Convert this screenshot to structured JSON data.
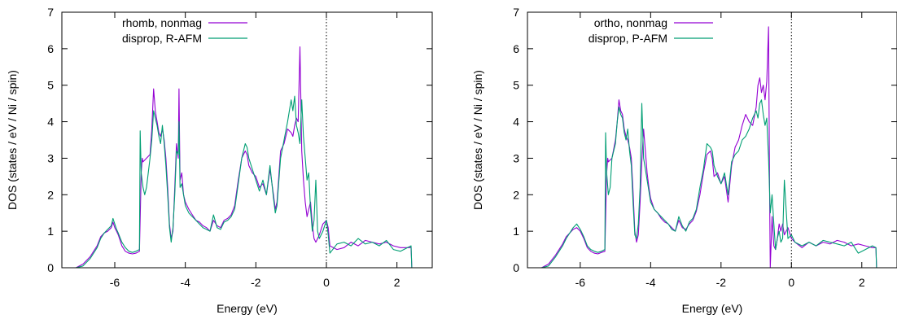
{
  "chart_data": [
    {
      "type": "line",
      "xlabel": "Energy (eV)",
      "ylabel": "DOS (states / eV / Ni / spin)",
      "xlim": [
        -7.5,
        3
      ],
      "ylim": [
        0,
        7
      ],
      "xticks": [
        -6,
        -4,
        -2,
        0,
        2
      ],
      "yticks": [
        0,
        1,
        2,
        3,
        4,
        5,
        6,
        7
      ],
      "xtick_labels": [
        "-6",
        "-4",
        "-2",
        "0",
        "2"
      ],
      "ytick_labels": [
        "0",
        "1",
        "2",
        "3",
        "4",
        "5",
        "6",
        "7"
      ],
      "grid": false,
      "legend_position": "top-left",
      "fermi_level_marker": 0,
      "series": [
        {
          "name": "rhomb, nonmag",
          "color": "#9400d3",
          "x": [
            -7.1,
            -6.9,
            -6.7,
            -6.5,
            -6.4,
            -6.3,
            -6.2,
            -6.1,
            -6.05,
            -6.0,
            -5.95,
            -5.9,
            -5.8,
            -5.7,
            -5.6,
            -5.5,
            -5.4,
            -5.3,
            -5.25,
            -5.22,
            -5.2,
            -5.1,
            -5.0,
            -4.95,
            -4.9,
            -4.85,
            -4.8,
            -4.75,
            -4.7,
            -4.65,
            -4.6,
            -4.55,
            -4.5,
            -4.45,
            -4.4,
            -4.35,
            -4.3,
            -4.25,
            -4.2,
            -4.18,
            -4.15,
            -4.1,
            -4.05,
            -4.0,
            -3.9,
            -3.8,
            -3.7,
            -3.6,
            -3.5,
            -3.4,
            -3.3,
            -3.2,
            -3.1,
            -3.0,
            -2.9,
            -2.8,
            -2.7,
            -2.6,
            -2.5,
            -2.4,
            -2.3,
            -2.25,
            -2.2,
            -2.1,
            -2.0,
            -1.9,
            -1.8,
            -1.7,
            -1.6,
            -1.5,
            -1.45,
            -1.4,
            -1.3,
            -1.2,
            -1.1,
            -1.0,
            -0.95,
            -0.9,
            -0.85,
            -0.8,
            -0.75,
            -0.7,
            -0.65,
            -0.6,
            -0.55,
            -0.5,
            -0.45,
            -0.4,
            -0.35,
            -0.3,
            -0.25,
            -0.2,
            -0.1,
            0.0,
            0.05,
            0.1,
            0.3,
            0.5,
            0.7,
            0.9,
            1.1,
            1.3,
            1.5,
            1.7,
            1.9,
            2.1,
            2.3,
            2.4,
            2.42
          ],
          "y": [
            0.0,
            0.1,
            0.3,
            0.6,
            0.85,
            0.95,
            1.0,
            1.1,
            1.25,
            1.1,
            1.0,
            0.9,
            0.6,
            0.45,
            0.4,
            0.38,
            0.4,
            0.45,
            2.6,
            3.0,
            2.9,
            3.0,
            3.1,
            3.8,
            4.9,
            4.3,
            4.0,
            3.7,
            3.6,
            3.8,
            3.5,
            3.0,
            2.2,
            1.2,
            0.8,
            1.0,
            2.2,
            3.4,
            3.0,
            4.9,
            2.4,
            2.6,
            2.0,
            1.8,
            1.6,
            1.45,
            1.3,
            1.25,
            1.15,
            1.1,
            1.0,
            1.3,
            1.15,
            1.1,
            1.3,
            1.35,
            1.45,
            1.7,
            2.4,
            3.0,
            3.2,
            3.1,
            2.8,
            2.6,
            2.5,
            2.2,
            2.3,
            2.0,
            2.7,
            2.0,
            1.6,
            1.8,
            3.2,
            3.4,
            3.8,
            3.7,
            3.6,
            3.9,
            4.1,
            4.0,
            6.05,
            3.2,
            2.4,
            1.8,
            1.4,
            1.6,
            1.8,
            1.2,
            0.8,
            0.7,
            0.8,
            0.9,
            1.2,
            1.3,
            1.1,
            0.6,
            0.5,
            0.55,
            0.7,
            0.6,
            0.75,
            0.7,
            0.65,
            0.7,
            0.6,
            0.55,
            0.55,
            0.55,
            0.0
          ]
        },
        {
          "name": "disprop, R-AFM",
          "color": "#009e73",
          "x": [
            -7.1,
            -6.9,
            -6.7,
            -6.5,
            -6.4,
            -6.3,
            -6.2,
            -6.1,
            -6.05,
            -6.0,
            -5.95,
            -5.9,
            -5.8,
            -5.7,
            -5.6,
            -5.5,
            -5.4,
            -5.3,
            -5.28,
            -5.25,
            -5.2,
            -5.15,
            -5.1,
            -5.0,
            -4.95,
            -4.9,
            -4.85,
            -4.8,
            -4.75,
            -4.7,
            -4.65,
            -4.6,
            -4.55,
            -4.5,
            -4.45,
            -4.4,
            -4.35,
            -4.3,
            -4.25,
            -4.2,
            -4.18,
            -4.15,
            -4.1,
            -4.05,
            -4.0,
            -3.9,
            -3.8,
            -3.7,
            -3.6,
            -3.5,
            -3.4,
            -3.3,
            -3.2,
            -3.1,
            -3.0,
            -2.9,
            -2.8,
            -2.7,
            -2.6,
            -2.5,
            -2.4,
            -2.3,
            -2.25,
            -2.2,
            -2.1,
            -2.0,
            -1.9,
            -1.8,
            -1.7,
            -1.6,
            -1.5,
            -1.45,
            -1.4,
            -1.3,
            -1.2,
            -1.1,
            -1.0,
            -0.95,
            -0.9,
            -0.85,
            -0.8,
            -0.75,
            -0.7,
            -0.65,
            -0.6,
            -0.55,
            -0.5,
            -0.45,
            -0.4,
            -0.35,
            -0.3,
            -0.25,
            -0.2,
            -0.1,
            0.0,
            0.05,
            0.1,
            0.3,
            0.5,
            0.7,
            0.9,
            1.1,
            1.3,
            1.5,
            1.7,
            1.9,
            2.1,
            2.3,
            2.4,
            2.42
          ],
          "y": [
            0.0,
            0.05,
            0.25,
            0.55,
            0.8,
            0.95,
            1.05,
            1.15,
            1.35,
            1.2,
            1.05,
            0.95,
            0.7,
            0.55,
            0.45,
            0.42,
            0.45,
            0.5,
            3.75,
            2.6,
            2.2,
            2.0,
            2.2,
            3.0,
            3.5,
            4.3,
            4.1,
            3.9,
            3.6,
            3.4,
            3.9,
            3.4,
            2.8,
            2.0,
            1.1,
            0.7,
            1.1,
            2.0,
            3.2,
            3.1,
            4.0,
            2.2,
            2.3,
            2.0,
            1.7,
            1.5,
            1.4,
            1.3,
            1.2,
            1.1,
            1.05,
            1.0,
            1.45,
            1.1,
            1.05,
            1.25,
            1.3,
            1.4,
            1.6,
            2.3,
            3.0,
            3.4,
            3.3,
            3.0,
            2.7,
            2.4,
            2.1,
            2.4,
            2.0,
            2.8,
            1.9,
            1.5,
            1.7,
            3.0,
            3.5,
            4.0,
            4.6,
            4.3,
            4.7,
            3.9,
            3.7,
            3.4,
            4.6,
            3.6,
            3.0,
            2.4,
            2.6,
            1.6,
            1.0,
            1.3,
            2.4,
            1.0,
            0.8,
            1.0,
            1.3,
            0.9,
            0.4,
            0.65,
            0.7,
            0.6,
            0.8,
            0.65,
            0.7,
            0.6,
            0.75,
            0.5,
            0.45,
            0.55,
            0.6,
            0.0
          ]
        }
      ]
    },
    {
      "type": "line",
      "xlabel": "Energy (eV)",
      "ylabel": "DOS (states / eV / Ni / spin)",
      "xlim": [
        -7.5,
        3
      ],
      "ylim": [
        0,
        7
      ],
      "xticks": [
        -6,
        -4,
        -2,
        0,
        2
      ],
      "yticks": [
        0,
        1,
        2,
        3,
        4,
        5,
        6,
        7
      ],
      "xtick_labels": [
        "-6",
        "-4",
        "-2",
        "0",
        "2"
      ],
      "ytick_labels": [
        "0",
        "1",
        "2",
        "3",
        "4",
        "5",
        "6",
        "7"
      ],
      "grid": false,
      "legend_position": "top-left",
      "fermi_level_marker": 0,
      "series": [
        {
          "name": "ortho, nonmag",
          "color": "#9400d3",
          "x": [
            -7.1,
            -6.9,
            -6.7,
            -6.5,
            -6.4,
            -6.3,
            -6.2,
            -6.1,
            -6.0,
            -5.9,
            -5.8,
            -5.7,
            -5.6,
            -5.5,
            -5.4,
            -5.3,
            -5.25,
            -5.22,
            -5.2,
            -5.1,
            -5.0,
            -4.95,
            -4.9,
            -4.85,
            -4.8,
            -4.75,
            -4.7,
            -4.65,
            -4.6,
            -4.55,
            -4.5,
            -4.45,
            -4.4,
            -4.35,
            -4.3,
            -4.25,
            -4.2,
            -4.1,
            -4.05,
            -4.0,
            -3.9,
            -3.8,
            -3.7,
            -3.6,
            -3.5,
            -3.4,
            -3.3,
            -3.2,
            -3.1,
            -3.0,
            -2.9,
            -2.8,
            -2.7,
            -2.6,
            -2.5,
            -2.4,
            -2.3,
            -2.25,
            -2.2,
            -2.1,
            -2.0,
            -1.9,
            -1.8,
            -1.7,
            -1.6,
            -1.5,
            -1.4,
            -1.3,
            -1.2,
            -1.1,
            -1.0,
            -0.95,
            -0.9,
            -0.85,
            -0.8,
            -0.75,
            -0.7,
            -0.65,
            -0.62,
            -0.6,
            -0.55,
            -0.5,
            -0.45,
            -0.4,
            -0.35,
            -0.3,
            -0.25,
            -0.2,
            -0.1,
            0.0,
            0.1,
            0.3,
            0.5,
            0.7,
            0.9,
            1.1,
            1.3,
            1.5,
            1.7,
            1.9,
            2.1,
            2.3,
            2.4,
            2.42
          ],
          "y": [
            0.0,
            0.1,
            0.35,
            0.65,
            0.85,
            0.95,
            1.05,
            1.1,
            1.0,
            0.8,
            0.55,
            0.45,
            0.4,
            0.38,
            0.42,
            0.45,
            2.6,
            3.0,
            2.9,
            3.0,
            3.5,
            4.0,
            4.6,
            4.3,
            4.2,
            3.8,
            3.6,
            3.5,
            3.3,
            3.0,
            2.1,
            1.0,
            0.7,
            0.9,
            1.8,
            2.9,
            3.8,
            2.6,
            2.2,
            1.9,
            1.6,
            1.5,
            1.35,
            1.25,
            1.2,
            1.1,
            1.0,
            1.3,
            1.1,
            1.05,
            1.2,
            1.3,
            1.55,
            2.0,
            2.6,
            3.1,
            3.2,
            3.0,
            2.5,
            2.6,
            2.3,
            2.5,
            1.8,
            2.8,
            3.3,
            3.5,
            3.9,
            4.2,
            4.0,
            3.9,
            4.4,
            5.0,
            5.2,
            4.8,
            5.0,
            4.6,
            5.1,
            6.6,
            2.0,
            0.0,
            1.4,
            0.6,
            0.5,
            0.8,
            1.2,
            1.0,
            1.2,
            0.9,
            1.1,
            0.8,
            0.7,
            0.55,
            0.7,
            0.6,
            0.7,
            0.65,
            0.75,
            0.7,
            0.6,
            0.65,
            0.6,
            0.55,
            0.55,
            0.0
          ]
        },
        {
          "name": "disprop, P-AFM",
          "color": "#009e73",
          "x": [
            -7.1,
            -6.9,
            -6.7,
            -6.5,
            -6.4,
            -6.3,
            -6.2,
            -6.1,
            -6.0,
            -5.9,
            -5.8,
            -5.7,
            -5.6,
            -5.5,
            -5.4,
            -5.3,
            -5.28,
            -5.25,
            -5.2,
            -5.15,
            -5.1,
            -5.0,
            -4.95,
            -4.9,
            -4.85,
            -4.8,
            -4.75,
            -4.7,
            -4.65,
            -4.6,
            -4.55,
            -4.5,
            -4.45,
            -4.4,
            -4.35,
            -4.3,
            -4.25,
            -4.2,
            -4.1,
            -4.05,
            -4.0,
            -3.9,
            -3.8,
            -3.7,
            -3.6,
            -3.5,
            -3.4,
            -3.3,
            -3.2,
            -3.1,
            -3.0,
            -2.9,
            -2.8,
            -2.7,
            -2.6,
            -2.5,
            -2.4,
            -2.3,
            -2.25,
            -2.2,
            -2.1,
            -2.0,
            -1.9,
            -1.8,
            -1.7,
            -1.6,
            -1.5,
            -1.4,
            -1.3,
            -1.2,
            -1.1,
            -1.0,
            -0.95,
            -0.9,
            -0.85,
            -0.8,
            -0.75,
            -0.7,
            -0.65,
            -0.6,
            -0.55,
            -0.5,
            -0.45,
            -0.4,
            -0.35,
            -0.3,
            -0.25,
            -0.2,
            -0.1,
            0.0,
            0.1,
            0.3,
            0.5,
            0.7,
            0.9,
            1.1,
            1.3,
            1.5,
            1.7,
            1.9,
            2.1,
            2.3,
            2.4,
            2.42
          ],
          "y": [
            0.0,
            0.05,
            0.3,
            0.6,
            0.8,
            0.95,
            1.1,
            1.2,
            1.05,
            0.85,
            0.6,
            0.5,
            0.45,
            0.42,
            0.45,
            0.5,
            3.7,
            2.6,
            2.0,
            2.2,
            3.0,
            3.4,
            4.0,
            4.4,
            4.2,
            4.1,
            3.7,
            3.5,
            3.8,
            3.2,
            2.8,
            1.8,
            0.9,
            0.8,
            1.2,
            2.2,
            4.5,
            3.0,
            2.4,
            2.1,
            1.8,
            1.6,
            1.5,
            1.4,
            1.3,
            1.2,
            1.05,
            1.0,
            1.4,
            1.15,
            1.0,
            1.25,
            1.35,
            1.6,
            2.2,
            2.7,
            3.4,
            3.3,
            3.2,
            2.8,
            2.5,
            2.3,
            2.6,
            2.0,
            2.9,
            3.1,
            3.2,
            3.5,
            3.6,
            3.8,
            4.1,
            4.3,
            4.1,
            4.5,
            4.6,
            4.2,
            3.9,
            4.1,
            3.0,
            1.5,
            2.0,
            1.2,
            0.5,
            0.8,
            1.0,
            0.7,
            0.8,
            2.4,
            0.8,
            0.9,
            0.7,
            0.6,
            0.7,
            0.6,
            0.75,
            0.7,
            0.65,
            0.6,
            0.7,
            0.4,
            0.5,
            0.6,
            0.55,
            0.0
          ]
        }
      ]
    }
  ]
}
